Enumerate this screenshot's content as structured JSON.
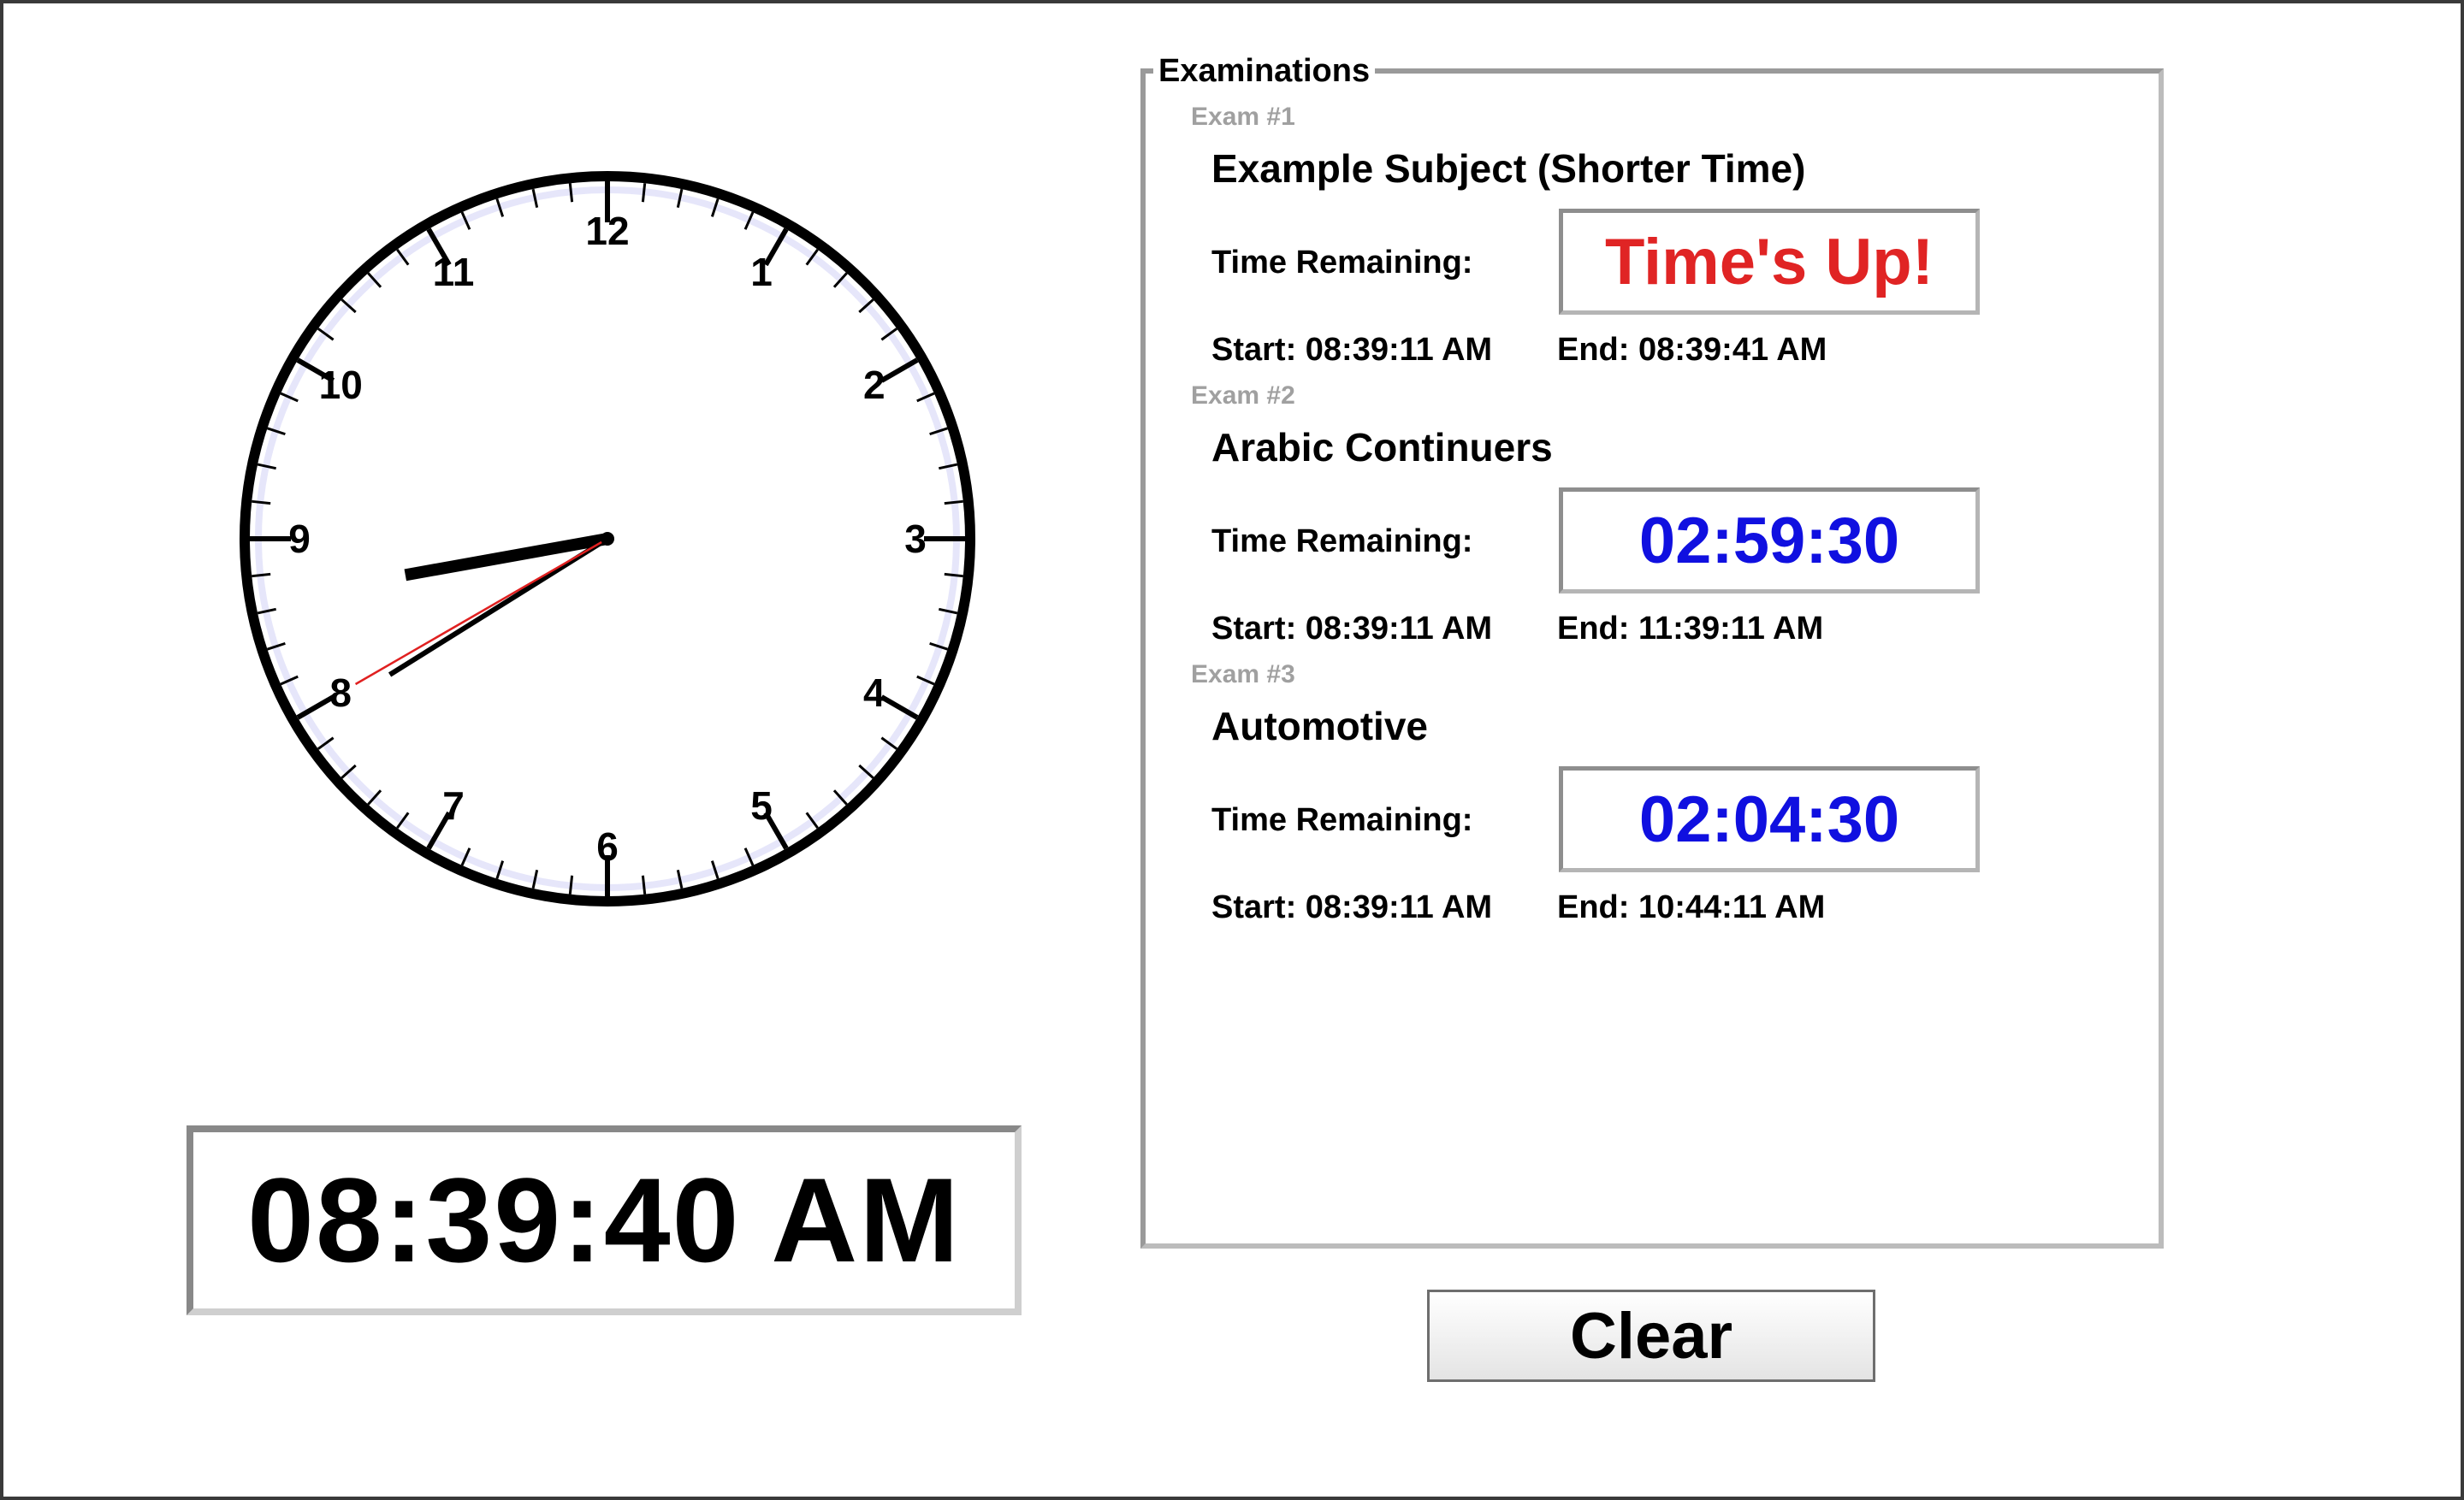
{
  "clock": {
    "numerals": [
      "12",
      "1",
      "2",
      "3",
      "4",
      "5",
      "6",
      "7",
      "8",
      "9",
      "10",
      "11"
    ],
    "time": {
      "hours": 8,
      "minutes": 39,
      "seconds": 40
    },
    "colors": {
      "face": "#ffffff",
      "rim": "#000000",
      "halo": "#e6e6fa",
      "second_hand": "#e02020",
      "hands": "#000000"
    }
  },
  "digital_clock": {
    "time": "08:39:40 AM"
  },
  "examinations": {
    "legend": "Examinations",
    "time_remaining_label": "Time Remaining:",
    "exams": [
      {
        "number": "Exam #1",
        "subject": "Example Subject (Shorter Time)",
        "remaining": "Time's Up!",
        "remaining_color": "#e02424",
        "start": "Start: 08:39:11 AM",
        "end": "End: 08:39:41 AM"
      },
      {
        "number": "Exam #2",
        "subject": "Arabic Continuers",
        "remaining": "02:59:30",
        "remaining_color": "#1010e0",
        "start": "Start: 08:39:11 AM",
        "end": "End: 11:39:11 AM"
      },
      {
        "number": "Exam #3",
        "subject": "Automotive",
        "remaining": "02:04:30",
        "remaining_color": "#1010e0",
        "start": "Start: 08:39:11 AM",
        "end": "End: 10:44:11 AM"
      }
    ]
  },
  "controls": {
    "clear_label": "Clear"
  }
}
